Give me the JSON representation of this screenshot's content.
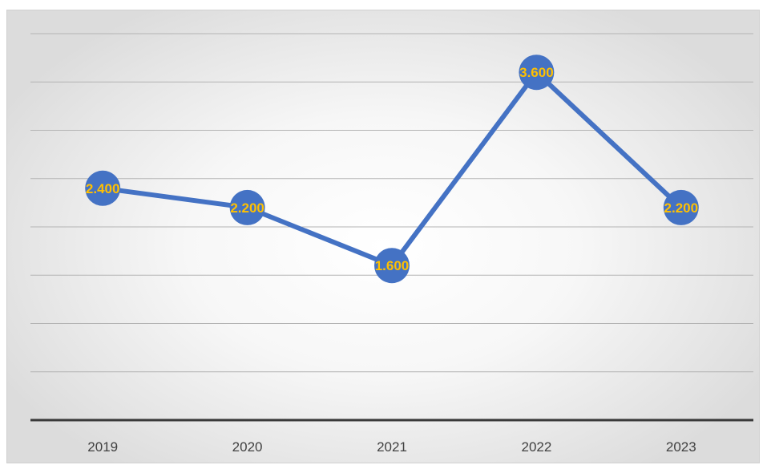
{
  "chart_data": {
    "type": "line",
    "categories": [
      "2019",
      "2020",
      "2021",
      "2022",
      "2023"
    ],
    "series": [
      {
        "values": [
          2.4,
          2.2,
          1.6,
          3.6,
          2.2
        ]
      }
    ],
    "data_labels": [
      "2.400",
      "2.200",
      "1.600",
      "3.600",
      "2.200"
    ],
    "title": "",
    "xlabel": "",
    "ylabel": "",
    "ylim": [
      0,
      4
    ],
    "grid": true,
    "legend": "none",
    "colors": {
      "line": "#4472c4",
      "marker": "#4472c4",
      "data_label": "#ffc000",
      "gridline": "#b4b4b4",
      "axis": "#3a3a3a"
    }
  }
}
